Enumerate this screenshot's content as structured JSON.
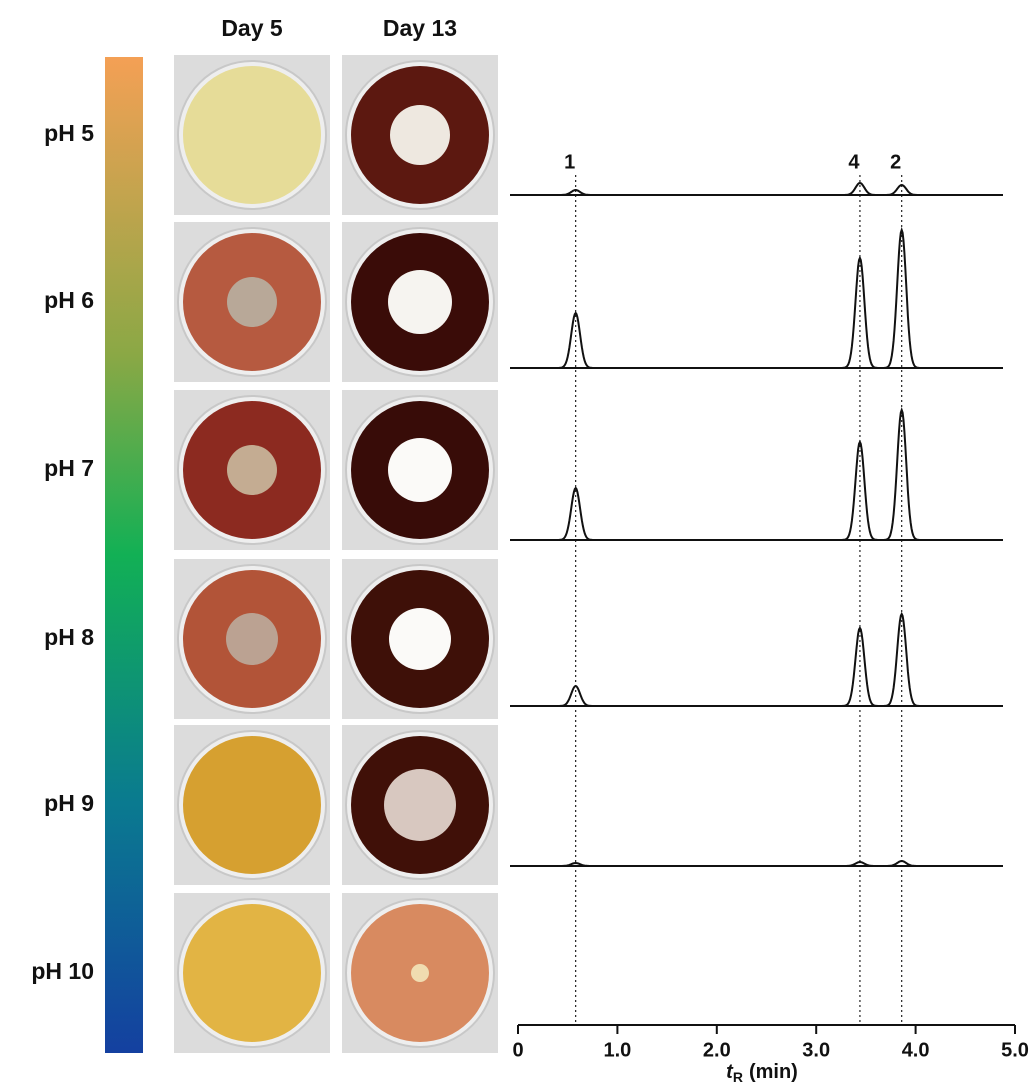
{
  "chart_data": {
    "type": "chromatogram",
    "column_headers": [
      "Day 5",
      "Day 13"
    ],
    "row_labels": [
      "pH 5",
      "pH 6",
      "pH 7",
      "pH 8",
      "pH 9",
      "pH 10"
    ],
    "peaks": [
      {
        "label": "1",
        "x": 0.58
      },
      {
        "label": "4",
        "x": 3.44
      },
      {
        "label": "2",
        "x": 3.86
      }
    ],
    "peak_label_color": "#e8201c",
    "traces": [
      {
        "heights": [
          5,
          12,
          10
        ]
      },
      {
        "heights": [
          55,
          110,
          138
        ]
      },
      {
        "heights": [
          52,
          98,
          130
        ]
      },
      {
        "heights": [
          20,
          78,
          92
        ]
      },
      {
        "heights": [
          3,
          4,
          5
        ]
      }
    ],
    "xlim": [
      0,
      5
    ],
    "xticks": [
      0,
      {
        "value": 1,
        "label": "1.0"
      },
      {
        "value": 2,
        "label": "2.0"
      },
      {
        "value": 3,
        "label": "3.0"
      },
      {
        "value": 4,
        "label": "4.0"
      },
      {
        "value": 5,
        "label": "5.0"
      }
    ],
    "xlabel": {
      "symbol": "t",
      "subscript": "R",
      "unit": "(min)"
    }
  }
}
